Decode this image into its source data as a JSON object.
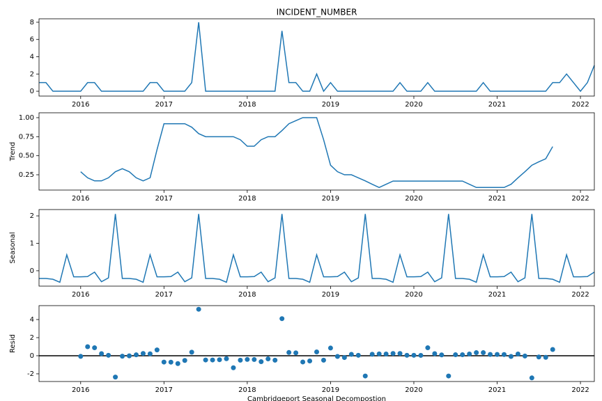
{
  "chart_data": [
    {
      "type": "line",
      "title": "INCIDENT_NUMBER",
      "color": "#1f77b4",
      "x": [
        "2015-07",
        "2015-08",
        "2015-09",
        "2015-10",
        "2015-11",
        "2015-12",
        "2016-01",
        "2016-02",
        "2016-03",
        "2016-04",
        "2016-05",
        "2016-06",
        "2016-07",
        "2016-08",
        "2016-09",
        "2016-10",
        "2016-11",
        "2016-12",
        "2017-01",
        "2017-02",
        "2017-03",
        "2017-04",
        "2017-05",
        "2017-06",
        "2017-07",
        "2017-08",
        "2017-09",
        "2017-10",
        "2017-11",
        "2017-12",
        "2018-01",
        "2018-02",
        "2018-03",
        "2018-04",
        "2018-05",
        "2018-06",
        "2018-07",
        "2018-08",
        "2018-09",
        "2018-10",
        "2018-11",
        "2018-12",
        "2019-01",
        "2019-02",
        "2019-03",
        "2019-04",
        "2019-05",
        "2019-06",
        "2019-07",
        "2019-08",
        "2019-09",
        "2019-10",
        "2019-11",
        "2019-12",
        "2020-01",
        "2020-02",
        "2020-03",
        "2020-04",
        "2020-05",
        "2020-06",
        "2020-07",
        "2020-08",
        "2020-09",
        "2020-10",
        "2020-11",
        "2020-12",
        "2021-01",
        "2021-02",
        "2021-03",
        "2021-04",
        "2021-05",
        "2021-06",
        "2021-07",
        "2021-08",
        "2021-09",
        "2021-10",
        "2021-11",
        "2021-12",
        "2022-01",
        "2022-02",
        "2022-03"
      ],
      "values": [
        1,
        1,
        0,
        0,
        0,
        0,
        0,
        1,
        1,
        0,
        0,
        0,
        0,
        0,
        0,
        0,
        1,
        1,
        0,
        0,
        0,
        0,
        1,
        8,
        0,
        0,
        0,
        0,
        0,
        0,
        0,
        0,
        0,
        0,
        0,
        7,
        1,
        1,
        0,
        0,
        2,
        0,
        1,
        0,
        0,
        0,
        0,
        0,
        0,
        0,
        0,
        0,
        1,
        0,
        0,
        0,
        1,
        0,
        0,
        0,
        0,
        0,
        0,
        0,
        1,
        0,
        0,
        0,
        0,
        0,
        0,
        0,
        0,
        0,
        1,
        1,
        2,
        1,
        0,
        1,
        3
      ],
      "xlim": [
        "2015-07",
        "2022-03"
      ],
      "ylim": [
        -0.56,
        8.4
      ],
      "xticks": [
        2016,
        2017,
        2018,
        2019,
        2020,
        2021,
        2022
      ],
      "yticks": [
        0,
        2,
        4,
        6,
        8
      ]
    },
    {
      "type": "line",
      "ylabel": "Trend",
      "color": "#1f77b4",
      "x": [
        "2015-07",
        "2015-08",
        "2015-09",
        "2015-10",
        "2015-11",
        "2015-12",
        "2016-01",
        "2016-02",
        "2016-03",
        "2016-04",
        "2016-05",
        "2016-06",
        "2016-07",
        "2016-08",
        "2016-09",
        "2016-10",
        "2016-11",
        "2016-12",
        "2017-01",
        "2017-02",
        "2017-03",
        "2017-04",
        "2017-05",
        "2017-06",
        "2017-07",
        "2017-08",
        "2017-09",
        "2017-10",
        "2017-11",
        "2017-12",
        "2018-01",
        "2018-02",
        "2018-03",
        "2018-04",
        "2018-05",
        "2018-06",
        "2018-07",
        "2018-08",
        "2018-09",
        "2018-10",
        "2018-11",
        "2018-12",
        "2019-01",
        "2019-02",
        "2019-03",
        "2019-04",
        "2019-05",
        "2019-06",
        "2019-07",
        "2019-08",
        "2019-09",
        "2019-10",
        "2019-11",
        "2019-12",
        "2020-01",
        "2020-02",
        "2020-03",
        "2020-04",
        "2020-05",
        "2020-06",
        "2020-07",
        "2020-08",
        "2020-09",
        "2020-10",
        "2020-11",
        "2020-12",
        "2021-01",
        "2021-02",
        "2021-03",
        "2021-04",
        "2021-05",
        "2021-06",
        "2021-07",
        "2021-08",
        "2021-09",
        "2021-10",
        "2021-11",
        "2021-12",
        "2022-01",
        "2022-02",
        "2022-03"
      ],
      "values": [
        null,
        null,
        null,
        null,
        null,
        null,
        0.29,
        0.21,
        0.17,
        0.17,
        0.21,
        0.29,
        0.33,
        0.29,
        0.21,
        0.17,
        0.21,
        0.58,
        0.92,
        0.92,
        0.92,
        0.92,
        0.875,
        0.79,
        0.75,
        0.75,
        0.75,
        0.75,
        0.75,
        0.71,
        0.625,
        0.625,
        0.71,
        0.75,
        0.75,
        0.83,
        0.92,
        0.96,
        1.0,
        1.0,
        1.0,
        0.71,
        0.375,
        0.29,
        0.25,
        0.25,
        0.21,
        0.17,
        0.125,
        0.083,
        0.125,
        0.167,
        0.167,
        0.167,
        0.167,
        0.167,
        0.167,
        0.167,
        0.167,
        0.167,
        0.167,
        0.167,
        0.125,
        0.083,
        0.083,
        0.083,
        0.083,
        0.083,
        0.125,
        0.21,
        0.29,
        0.375,
        0.42,
        0.46,
        0.62,
        null,
        null,
        null,
        null,
        null,
        null
      ],
      "xlim": [
        "2015-07",
        "2022-03"
      ],
      "ylim": [
        0.049,
        1.064
      ],
      "xticks": [
        2016,
        2017,
        2018,
        2019,
        2020,
        2021,
        2022
      ],
      "yticks": [
        0.25,
        {
          "value": 0.5,
          "label": "0.50"
        },
        0.75,
        {
          "value": 1,
          "label": "1.00"
        }
      ]
    },
    {
      "type": "line",
      "ylabel": "Seasonal",
      "color": "#1f77b4",
      "x": [
        "2015-07",
        "2015-08",
        "2015-09",
        "2015-10",
        "2015-11",
        "2015-12",
        "2016-01",
        "2016-02",
        "2016-03",
        "2016-04",
        "2016-05",
        "2016-06",
        "2016-07",
        "2016-08",
        "2016-09",
        "2016-10",
        "2016-11",
        "2016-12",
        "2017-01",
        "2017-02",
        "2017-03",
        "2017-04",
        "2017-05",
        "2017-06",
        "2017-07",
        "2017-08",
        "2017-09",
        "2017-10",
        "2017-11",
        "2017-12",
        "2018-01",
        "2018-02",
        "2018-03",
        "2018-04",
        "2018-05",
        "2018-06",
        "2018-07",
        "2018-08",
        "2018-09",
        "2018-10",
        "2018-11",
        "2018-12",
        "2019-01",
        "2019-02",
        "2019-03",
        "2019-04",
        "2019-05",
        "2019-06",
        "2019-07",
        "2019-08",
        "2019-09",
        "2019-10",
        "2019-11",
        "2019-12",
        "2020-01",
        "2020-02",
        "2020-03",
        "2020-04",
        "2020-05",
        "2020-06",
        "2020-07",
        "2020-08",
        "2020-09",
        "2020-10",
        "2020-11",
        "2020-12",
        "2021-01",
        "2021-02",
        "2021-03",
        "2021-04",
        "2021-05",
        "2021-06",
        "2021-07",
        "2021-08",
        "2021-09",
        "2021-10",
        "2021-11",
        "2021-12",
        "2022-01",
        "2022-02",
        "2022-03"
      ],
      "values": [
        -0.28,
        -0.28,
        -0.31,
        -0.42,
        0.58,
        -0.22,
        -0.22,
        -0.21,
        -0.05,
        -0.4,
        -0.26,
        2.07,
        -0.28,
        -0.28,
        -0.31,
        -0.42,
        0.58,
        -0.22,
        -0.22,
        -0.21,
        -0.05,
        -0.4,
        -0.26,
        2.07,
        -0.28,
        -0.28,
        -0.31,
        -0.42,
        0.58,
        -0.22,
        -0.22,
        -0.21,
        -0.05,
        -0.4,
        -0.26,
        2.07,
        -0.28,
        -0.28,
        -0.31,
        -0.42,
        0.58,
        -0.22,
        -0.22,
        -0.21,
        -0.05,
        -0.4,
        -0.26,
        2.07,
        -0.28,
        -0.28,
        -0.31,
        -0.42,
        0.58,
        -0.22,
        -0.22,
        -0.21,
        -0.05,
        -0.4,
        -0.26,
        2.07,
        -0.28,
        -0.28,
        -0.31,
        -0.42,
        0.58,
        -0.22,
        -0.22,
        -0.21,
        -0.05,
        -0.4,
        -0.26,
        2.07,
        -0.28,
        -0.28,
        -0.31,
        -0.42,
        0.58,
        -0.22,
        -0.22,
        -0.21,
        -0.05
      ],
      "xlim": [
        "2015-07",
        "2022-03"
      ],
      "ylim": [
        -0.56,
        2.23
      ],
      "xticks": [
        2016,
        2017,
        2018,
        2019,
        2020,
        2021,
        2022
      ],
      "yticks": [
        0,
        1,
        2
      ]
    },
    {
      "type": "scatter",
      "ylabel": "Resid",
      "xlabel": "Cambridgeport Seasonal Decompostion",
      "color": "#1f77b4",
      "hline": 0,
      "x": [
        "2015-07",
        "2015-08",
        "2015-09",
        "2015-10",
        "2015-11",
        "2015-12",
        "2016-01",
        "2016-02",
        "2016-03",
        "2016-04",
        "2016-05",
        "2016-06",
        "2016-07",
        "2016-08",
        "2016-09",
        "2016-10",
        "2016-11",
        "2016-12",
        "2017-01",
        "2017-02",
        "2017-03",
        "2017-04",
        "2017-05",
        "2017-06",
        "2017-07",
        "2017-08",
        "2017-09",
        "2017-10",
        "2017-11",
        "2017-12",
        "2018-01",
        "2018-02",
        "2018-03",
        "2018-04",
        "2018-05",
        "2018-06",
        "2018-07",
        "2018-08",
        "2018-09",
        "2018-10",
        "2018-11",
        "2018-12",
        "2019-01",
        "2019-02",
        "2019-03",
        "2019-04",
        "2019-05",
        "2019-06",
        "2019-07",
        "2019-08",
        "2019-09",
        "2019-10",
        "2019-11",
        "2019-12",
        "2020-01",
        "2020-02",
        "2020-03",
        "2020-04",
        "2020-05",
        "2020-06",
        "2020-07",
        "2020-08",
        "2020-09",
        "2020-10",
        "2020-11",
        "2020-12",
        "2021-01",
        "2021-02",
        "2021-03",
        "2021-04",
        "2021-05",
        "2021-06",
        "2021-07",
        "2021-08",
        "2021-09",
        "2021-10",
        "2021-11",
        "2021-12",
        "2022-01",
        "2022-02",
        "2022-03"
      ],
      "values": [
        null,
        null,
        null,
        null,
        null,
        null,
        -0.07,
        1.0,
        0.88,
        0.23,
        0.05,
        -2.36,
        -0.05,
        -0.01,
        0.1,
        0.25,
        0.21,
        0.64,
        -0.7,
        -0.71,
        -0.87,
        -0.52,
        0.39,
        5.14,
        -0.47,
        -0.47,
        -0.44,
        -0.33,
        -1.33,
        -0.49,
        -0.41,
        -0.42,
        -0.66,
        -0.35,
        -0.49,
        4.1,
        0.36,
        0.32,
        -0.69,
        -0.58,
        0.42,
        -0.49,
        0.85,
        -0.08,
        -0.2,
        0.15,
        0.05,
        -2.24,
        0.16,
        0.2,
        0.19,
        0.25,
        0.25,
        0.05,
        0.05,
        0.04,
        0.88,
        0.23,
        0.09,
        -2.24,
        0.11,
        0.11,
        0.19,
        0.34,
        0.34,
        0.14,
        0.14,
        0.13,
        -0.08,
        0.19,
        -0.03,
        -2.45,
        -0.14,
        -0.18,
        0.69,
        null,
        null,
        null,
        null,
        null,
        null
      ],
      "xlim": [
        "2015-07",
        "2022-03"
      ],
      "ylim": [
        -2.85,
        5.54
      ],
      "xticks": [
        2016,
        2017,
        2018,
        2019,
        2020,
        2021,
        2022
      ],
      "yticks": [
        -2,
        0,
        2,
        4
      ]
    }
  ]
}
